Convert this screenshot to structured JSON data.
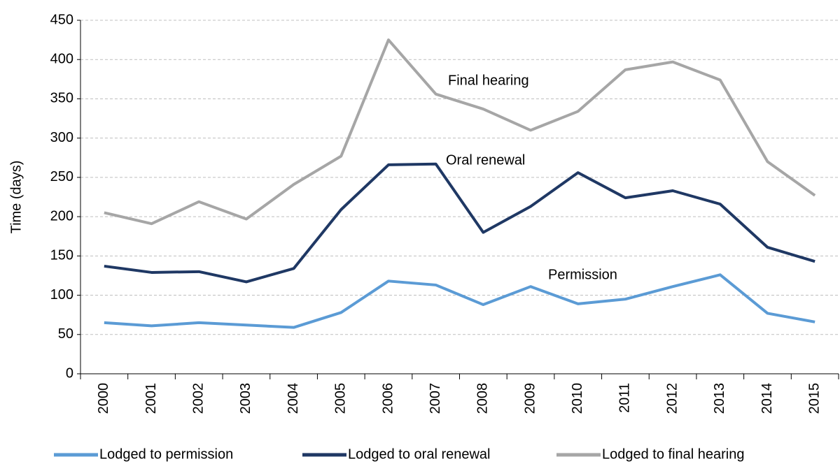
{
  "chart_data": {
    "type": "line",
    "y_label": "Time (days)",
    "categories": [
      "2000",
      "2001",
      "2002",
      "2003",
      "2004",
      "2005",
      "2006",
      "2007",
      "2008",
      "2009",
      "2010",
      "2011",
      "2012",
      "2013",
      "2014",
      "2015"
    ],
    "series": [
      {
        "name": "Lodged to permission",
        "color": "#5b9bd5",
        "values": [
          65,
          61,
          65,
          62,
          59,
          78,
          118,
          113,
          88,
          111,
          89,
          95,
          111,
          126,
          77,
          66
        ]
      },
      {
        "name": "Lodged to oral renewal",
        "color": "#1f3864",
        "values": [
          137,
          129,
          130,
          117,
          134,
          209,
          266,
          267,
          180,
          213,
          256,
          224,
          233,
          216,
          161,
          143
        ]
      },
      {
        "name": "Lodged to final hearing",
        "color": "#a6a6a6",
        "values": [
          205,
          191,
          219,
          197,
          241,
          277,
          425,
          356,
          337,
          310,
          334,
          387,
          397,
          374,
          270,
          227
        ]
      }
    ],
    "annotations": [
      "Final hearing",
      "Oral renewal",
      "Permission"
    ],
    "ylim": [
      0,
      450
    ],
    "yticks": [
      0,
      50,
      100,
      150,
      200,
      250,
      300,
      350,
      400,
      450
    ],
    "grid": true
  }
}
